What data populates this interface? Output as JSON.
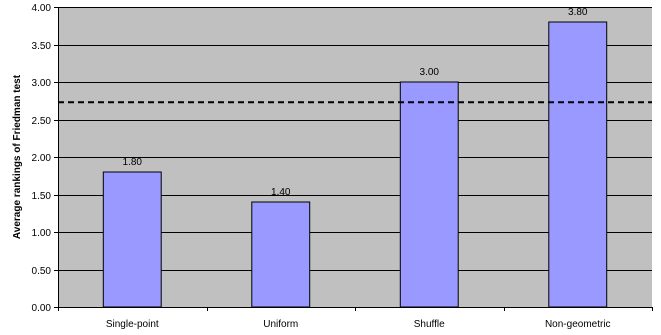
{
  "chart_data": {
    "type": "bar",
    "title": "",
    "xlabel": "",
    "ylabel": "Average rankings of Friedman test",
    "categories": [
      "Single-point",
      "Uniform",
      "Shuffle",
      "Non-geometric"
    ],
    "values": [
      1.8,
      1.4,
      3.0,
      3.8
    ],
    "value_labels": [
      "1.80",
      "1.40",
      "3.00",
      "3.80"
    ],
    "ylim": [
      0,
      4
    ],
    "yticks": [
      0,
      0.5,
      1,
      1.5,
      2,
      2.5,
      3,
      3.5,
      4
    ],
    "ytick_labels": [
      "0.00",
      "0.50",
      "1.00",
      "1.50",
      "2.00",
      "2.50",
      "3.00",
      "3.50",
      "4.00"
    ],
    "grid": "horizontal",
    "reference_line": {
      "value": 2.73,
      "style": "dashed"
    },
    "legend": "none",
    "colors": {
      "bar_fill": "#9999ff",
      "bar_stroke": "#000000",
      "plot_background": "#c0c0c0",
      "gridline": "#000000",
      "reference_line": "#000000"
    }
  }
}
